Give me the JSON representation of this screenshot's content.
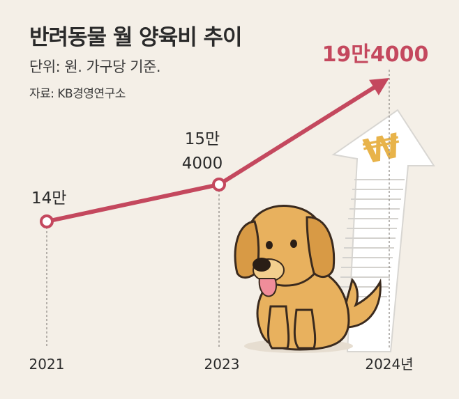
{
  "header": {
    "title": "반려동물 월 양육비 추이",
    "subtitle": "단위: 원. 가구당 기준.",
    "source": "자료: KB경영연구소"
  },
  "colors": {
    "background": "#f4efe7",
    "line": "#c4485e",
    "highlight_label": "#c4485e",
    "text": "#2a2a2a"
  },
  "chart_data": {
    "type": "line",
    "x": [
      "2021",
      "2023",
      "2024년"
    ],
    "series": [
      {
        "values": [
          140000,
          154000,
          194000
        ]
      }
    ],
    "data_labels": [
      "14만",
      "15만\n4000",
      "19만4000"
    ],
    "ylim": [
      100000,
      200000
    ],
    "grid": false,
    "legend": "none",
    "decorations": [
      "won-arrow-receipt-illustration",
      "puppy-illustration",
      "arrowhead-at-line-end"
    ]
  }
}
